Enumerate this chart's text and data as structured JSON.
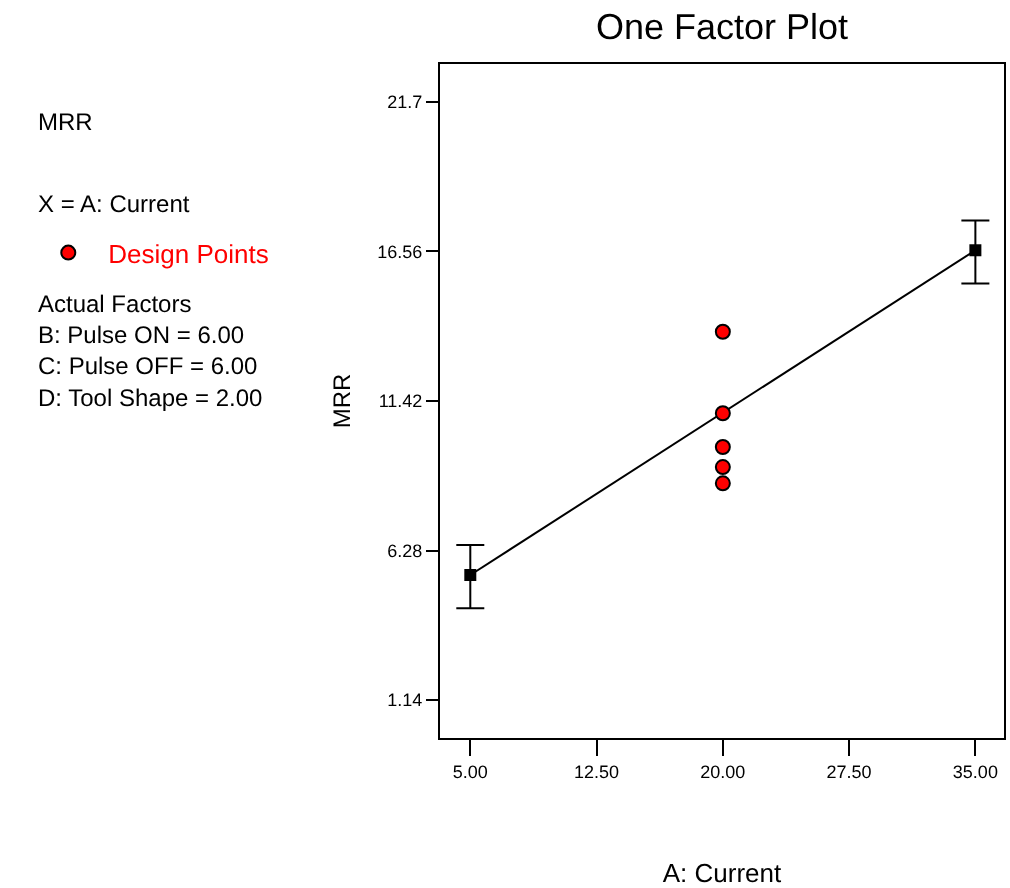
{
  "chart_data": {
    "type": "line",
    "title": "One Factor Plot",
    "xlabel": "A: Current",
    "ylabel": "MRR",
    "annotations": [
      "MRR",
      "X = A: Current",
      "Actual Factors\nB: Pulse ON = 6.00\nC: Pulse OFF = 6.00\nD: Tool Shape = 2.00"
    ],
    "series": [
      {
        "color": "#000000",
        "marker": "square",
        "x": [
          5,
          35
        ],
        "values": [
          5.44,
          16.6
        ],
        "errors": [
          [
            4.3,
            6.47
          ],
          [
            15.46,
            17.62
          ]
        ]
      },
      {
        "type": "scatter",
        "name": "Design Points",
        "color": "#ff0000",
        "marker": "circle",
        "x": [
          20,
          20,
          20,
          20,
          20
        ],
        "values": [
          13.8,
          11.0,
          9.84,
          9.15,
          8.59
        ]
      }
    ],
    "xlim": [
      3.2,
      36.7
    ],
    "ylim": [
      -0.16,
      23.0
    ],
    "xticks": [
      {
        "value": 5,
        "label": "5.00"
      },
      {
        "value": 12.5,
        "label": "12.50"
      },
      {
        "value": 20,
        "label": "20.00"
      },
      {
        "value": 27.5,
        "label": "27.50"
      },
      {
        "value": 35,
        "label": "35.00"
      }
    ],
    "yticks": [
      1.14,
      6.28,
      11.42,
      16.56,
      21.7
    ],
    "legend": "left"
  }
}
